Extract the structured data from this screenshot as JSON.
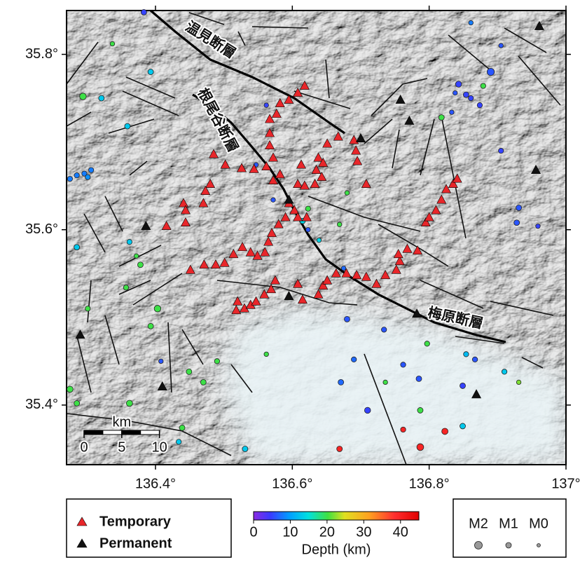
{
  "chart_data": {
    "type": "map",
    "xlim": [
      136.27,
      137.0
    ],
    "ylim": [
      35.332,
      35.85
    ],
    "xticks": [
      {
        "value": 136.4,
        "label": "136.4°"
      },
      {
        "value": 136.6,
        "label": "136.6°"
      },
      {
        "value": 136.8,
        "label": "136.8°"
      },
      {
        "value": 137.0,
        "label": "137°"
      }
    ],
    "yticks": [
      {
        "value": 35.4,
        "label": "35.4°"
      },
      {
        "value": 35.6,
        "label": "35.6°"
      },
      {
        "value": 35.8,
        "label": "35.8°"
      }
    ],
    "fault_labels": [
      "温見断層",
      "根尾谷断層",
      "梅原断層"
    ],
    "stations": [
      {
        "name": "Temporary",
        "color": "#e8262a",
        "lon": [
          136.618,
          136.608,
          136.595,
          136.582,
          136.577,
          136.567,
          136.567,
          136.567,
          136.572,
          136.562,
          136.544,
          136.526,
          136.502,
          136.485,
          136.48,
          136.473,
          136.47,
          136.441,
          136.444,
          136.444,
          136.416,
          136.582,
          136.572,
          136.613,
          136.608,
          136.618,
          136.633,
          136.643,
          136.635,
          136.638,
          136.645,
          136.651,
          136.667,
          136.69,
          136.693,
          136.695,
          136.708,
          136.595,
          136.603,
          136.608,
          136.621,
          136.59,
          136.58,
          136.57,
          136.565,
          136.56,
          136.549,
          136.539,
          136.527,
          136.514,
          136.501,
          136.488,
          136.471,
          136.451,
          136.52,
          136.518,
          136.53,
          136.539,
          136.547,
          136.559,
          136.569,
          136.575,
          136.608,
          136.615,
          136.638,
          136.645,
          136.651,
          136.664,
          136.679,
          136.694,
          136.708,
          136.723,
          136.736,
          136.752,
          136.757,
          136.755,
          136.768,
          136.783,
          136.795,
          136.8,
          136.81,
          136.818,
          136.825,
          136.835,
          136.841
        ],
        "lat": [
          35.764,
          35.756,
          35.748,
          35.744,
          35.732,
          35.726,
          35.71,
          35.696,
          35.682,
          35.672,
          35.669,
          35.67,
          35.674,
          35.686,
          35.652,
          35.644,
          35.63,
          35.63,
          35.622,
          35.608,
          35.604,
          35.663,
          35.656,
          35.674,
          35.652,
          35.65,
          35.652,
          35.66,
          35.668,
          35.682,
          35.676,
          35.698,
          35.706,
          35.702,
          35.69,
          35.678,
          35.652,
          35.63,
          35.622,
          35.614,
          35.614,
          35.614,
          35.606,
          35.596,
          35.586,
          35.574,
          35.57,
          35.574,
          35.58,
          35.572,
          35.562,
          35.56,
          35.56,
          35.554,
          35.518,
          35.508,
          35.51,
          35.514,
          35.518,
          35.526,
          35.532,
          35.542,
          35.538,
          35.52,
          35.526,
          35.536,
          35.542,
          35.55,
          35.55,
          35.548,
          35.546,
          35.538,
          35.548,
          35.554,
          35.564,
          35.572,
          35.578,
          35.576,
          35.608,
          35.614,
          35.622,
          35.634,
          35.646,
          35.652,
          35.658
        ]
      },
      {
        "name": "Permanent",
        "color": "#111111",
        "lon": [
          136.961,
          136.758,
          136.771,
          136.7,
          136.956,
          136.595,
          136.386,
          136.595,
          136.782,
          136.29,
          136.41,
          136.869
        ],
        "lat": [
          35.832,
          35.748,
          35.724,
          35.704,
          35.668,
          35.634,
          35.604,
          35.524,
          35.504,
          35.48,
          35.421,
          35.412
        ]
      }
    ],
    "earthquakes": {
      "lon": [
        136.383,
        136.861,
        136.905,
        136.89,
        136.843,
        136.854,
        136.838,
        136.861,
        136.874,
        136.833,
        136.905,
        136.931,
        136.928,
        136.959,
        136.275,
        136.285,
        136.296,
        136.306,
        136.301,
        136.68,
        136.69,
        136.671,
        136.734,
        136.762,
        136.785,
        136.71,
        136.849,
        136.867,
        136.562,
        136.547,
        136.572,
        136.623,
        136.675,
        136.408,
        136.321,
        136.359,
        136.393,
        136.285,
        136.362,
        136.531,
        136.854,
        136.91,
        136.849,
        136.615,
        136.639,
        136.434,
        136.294,
        136.337,
        136.818,
        136.879,
        136.797,
        136.372,
        136.378,
        136.357,
        136.301,
        136.403,
        136.393,
        136.275,
        136.285,
        136.362,
        136.449,
        136.47,
        136.49,
        136.562,
        136.439,
        136.623,
        136.669,
        136.68,
        136.736,
        136.931,
        136.787,
        136.787,
        136.823,
        136.669,
        136.762
      ],
      "lat": [
        35.848,
        35.836,
        35.81,
        35.78,
        35.766,
        35.754,
        35.756,
        35.75,
        35.742,
        35.734,
        35.69,
        35.625,
        35.608,
        35.604,
        35.658,
        35.662,
        35.664,
        35.668,
        35.66,
        35.498,
        35.452,
        35.426,
        35.486,
        35.446,
        35.43,
        35.394,
        35.422,
        35.452,
        35.742,
        35.674,
        35.634,
        35.6,
        35.556,
        35.45,
        35.75,
        35.718,
        35.78,
        35.58,
        35.586,
        35.35,
        35.458,
        35.438,
        35.376,
        35.61,
        35.588,
        35.358,
        35.752,
        35.812,
        35.728,
        35.764,
        35.47,
        35.57,
        35.56,
        35.534,
        35.51,
        35.51,
        35.49,
        35.418,
        35.402,
        35.402,
        35.438,
        35.426,
        35.45,
        35.458,
        35.374,
        35.624,
        35.606,
        35.642,
        35.426,
        35.426,
        35.394,
        35.352,
        35.37,
        35.35,
        35.372
      ],
      "depth": [
        5,
        8,
        6,
        6,
        5,
        5,
        6,
        5,
        5,
        6,
        5,
        6,
        6,
        5,
        8,
        8,
        8,
        8,
        9,
        6,
        7,
        7,
        6,
        6,
        6,
        5,
        5,
        6,
        5,
        6,
        6,
        6,
        7,
        6,
        13,
        13,
        13,
        13,
        13,
        13,
        12,
        13,
        13,
        14,
        14,
        13,
        20,
        20,
        20,
        20,
        20,
        20,
        20,
        20,
        20,
        20,
        20,
        20,
        20,
        20,
        20,
        20,
        20,
        20,
        20,
        20,
        20,
        20,
        20,
        22,
        20,
        40,
        40,
        40,
        40
      ],
      "magnitude": [
        1,
        0.5,
        0.5,
        1.8,
        1.2,
        1,
        0.5,
        0.8,
        0.8,
        0.5,
        0.8,
        1,
        1,
        0.5,
        0.8,
        0.8,
        0.8,
        0.8,
        0.8,
        1,
        0.8,
        1,
        0.8,
        0.8,
        1,
        1.2,
        1,
        0.8,
        0.5,
        0.5,
        0.5,
        0.5,
        0.5,
        0.5,
        1,
        1,
        1,
        1,
        0.8,
        1,
        0.8,
        0.8,
        1,
        1,
        0.5,
        0.8,
        1.5,
        0.5,
        1,
        0.8,
        0.8,
        0.5,
        1,
        0.8,
        0.8,
        1.5,
        1,
        1.3,
        1,
        1.3,
        1,
        1,
        0.8,
        0.5,
        1,
        0.8,
        0.5,
        0.5,
        0.5,
        0.5,
        1,
        1.6,
        1.3,
        1,
        0.8
      ]
    },
    "colorbar": {
      "label": "Depth (km)",
      "lim": [
        0,
        45
      ],
      "ticks": [
        0,
        10,
        20,
        30,
        40
      ]
    },
    "size_legend": [
      {
        "value": 2,
        "label": "M2"
      },
      {
        "value": 1,
        "label": "M1"
      },
      {
        "value": 0,
        "label": "M0"
      }
    ],
    "scale_bar": {
      "label": "km",
      "ticks": [
        0,
        5,
        10
      ]
    }
  }
}
